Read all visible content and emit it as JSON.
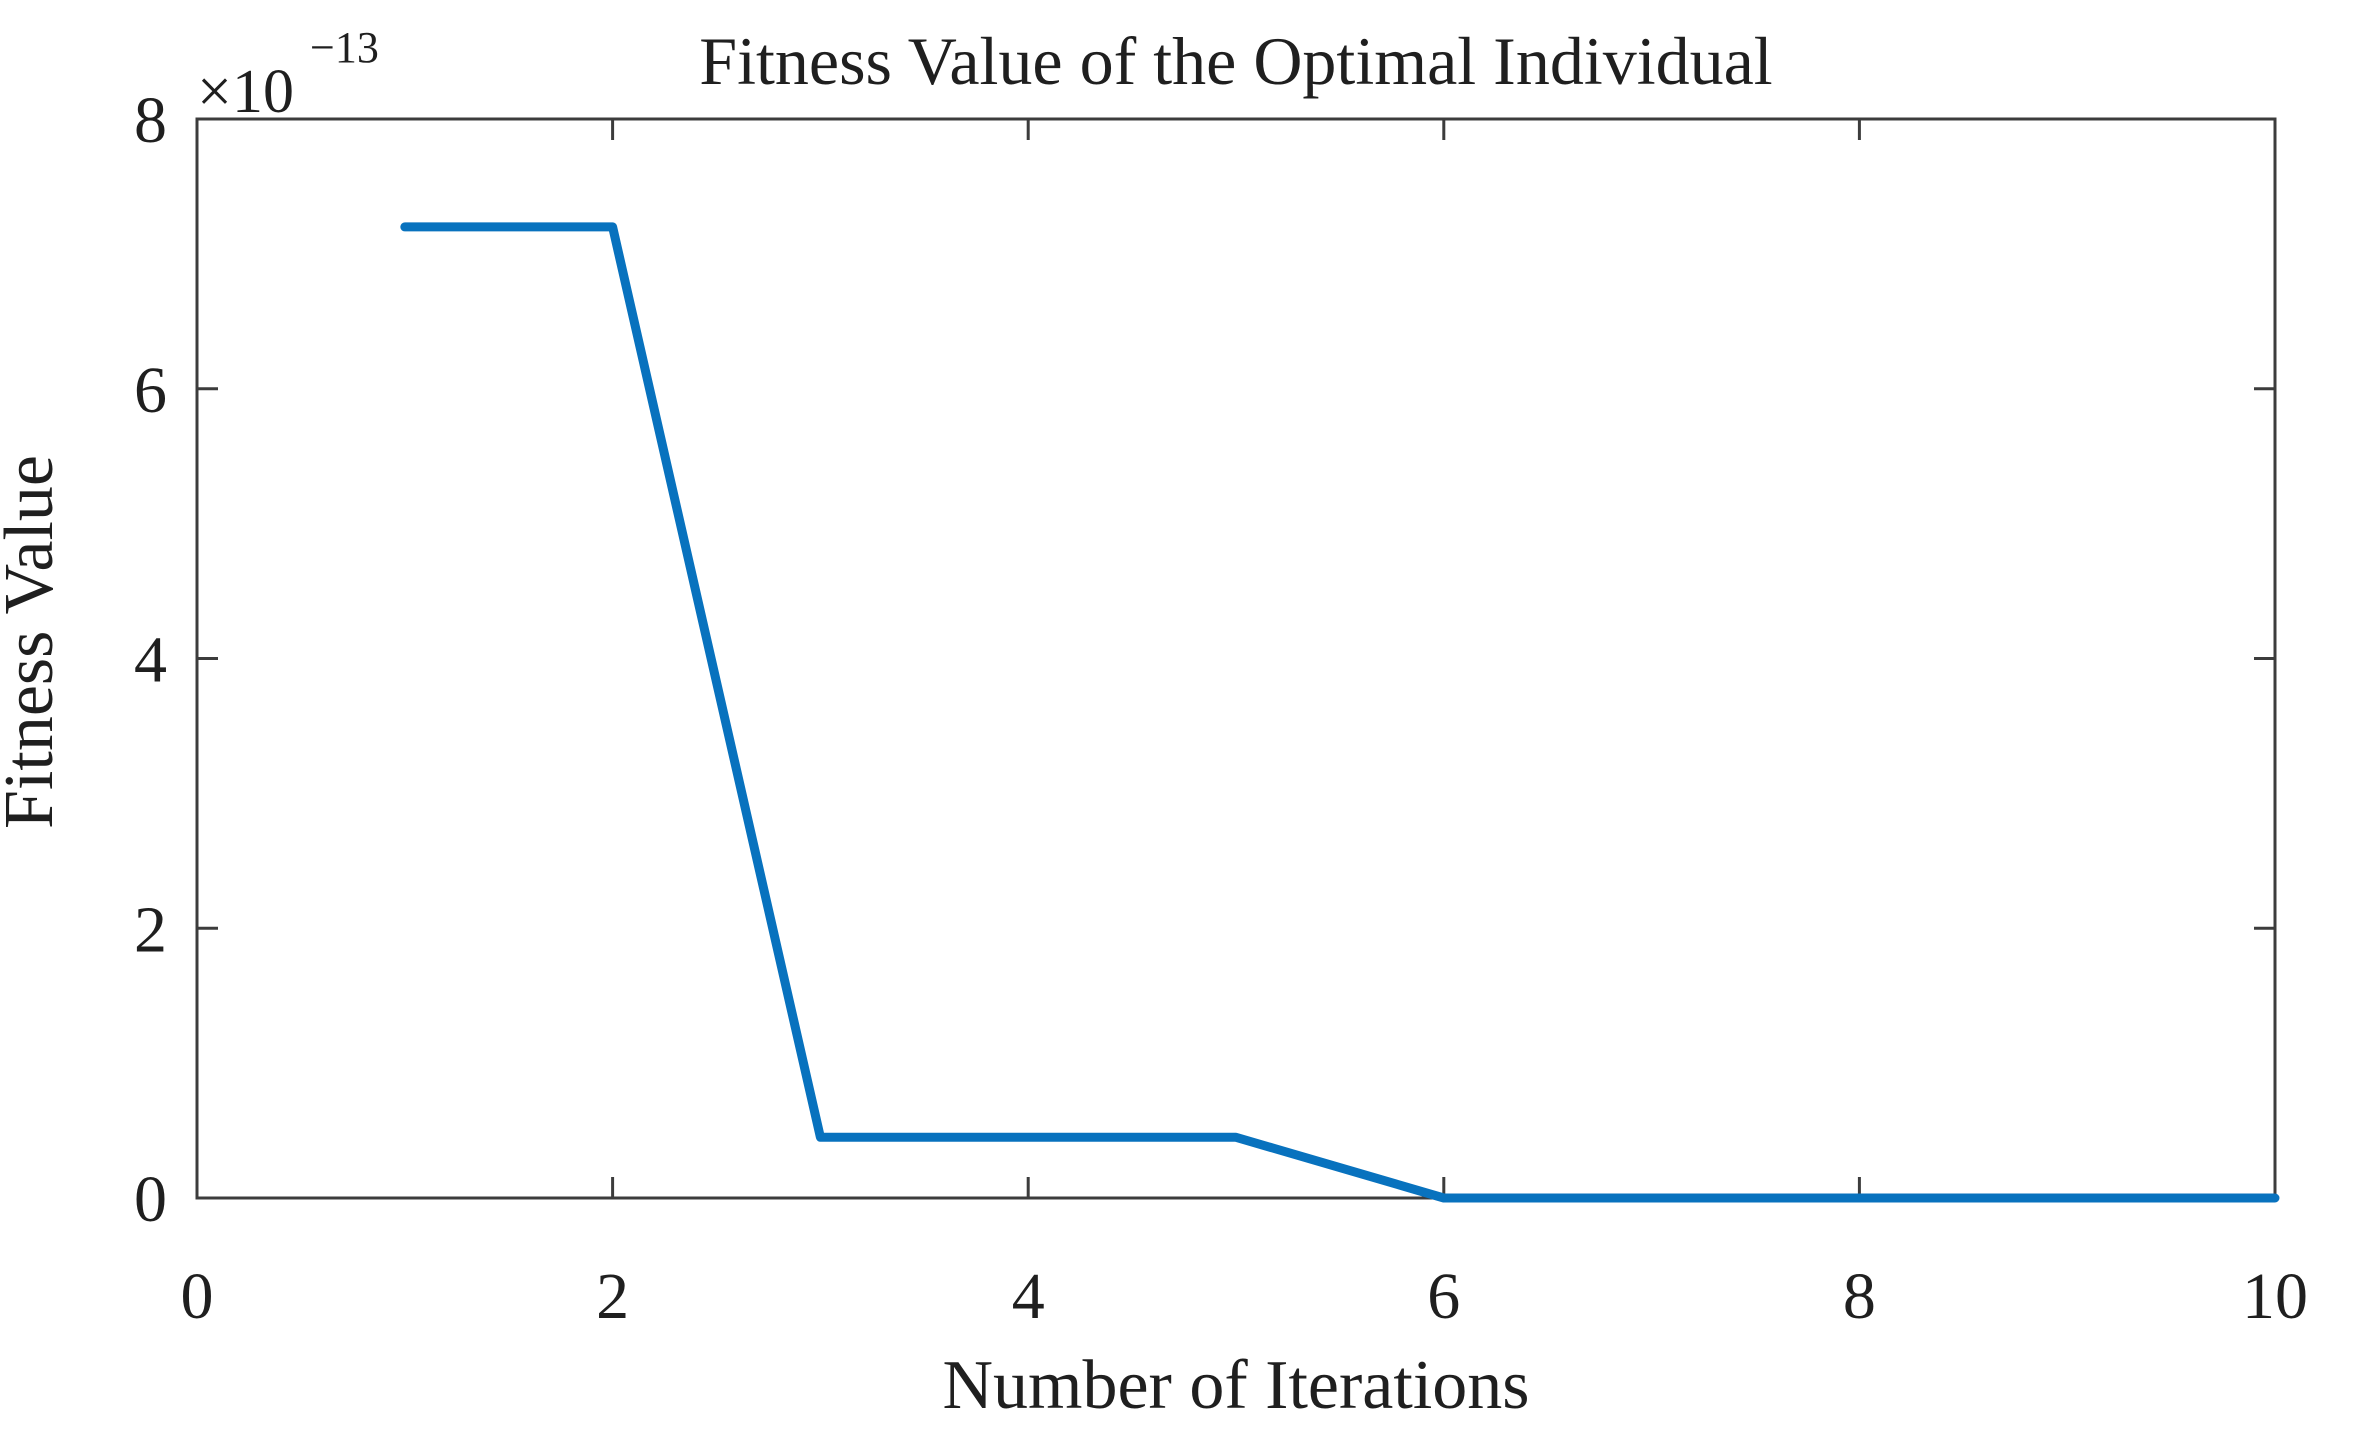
{
  "chart_data": {
    "type": "line",
    "title": "Fitness Value of the Optimal Individual",
    "xlabel": "Number of Iterations",
    "ylabel": "Fitness Value",
    "y_multiplier_base": "×10",
    "y_multiplier_exponent": "−13",
    "y_units": "×10^−13",
    "x": [
      1,
      2,
      3,
      4,
      5,
      6,
      7,
      8,
      9,
      10
    ],
    "y_e13": [
      7.2,
      7.2,
      0.45,
      0.45,
      0.45,
      0,
      0,
      0,
      0,
      0
    ],
    "xlim": [
      0,
      10
    ],
    "ylim_e13": [
      0,
      8
    ],
    "x_ticks": [
      "0",
      "2",
      "4",
      "6",
      "8",
      "10"
    ],
    "x_tick_values": [
      0,
      2,
      4,
      6,
      8,
      10
    ],
    "y_ticks": [
      "0",
      "2",
      "4",
      "6",
      "8"
    ],
    "y_tick_values": [
      0,
      2,
      4,
      6,
      8
    ],
    "grid": false,
    "legend": null,
    "line_color": "#0872be",
    "axis_color": "#3c3c3c",
    "text_color": "#1f1f1f",
    "background_color": "#ffffff"
  }
}
